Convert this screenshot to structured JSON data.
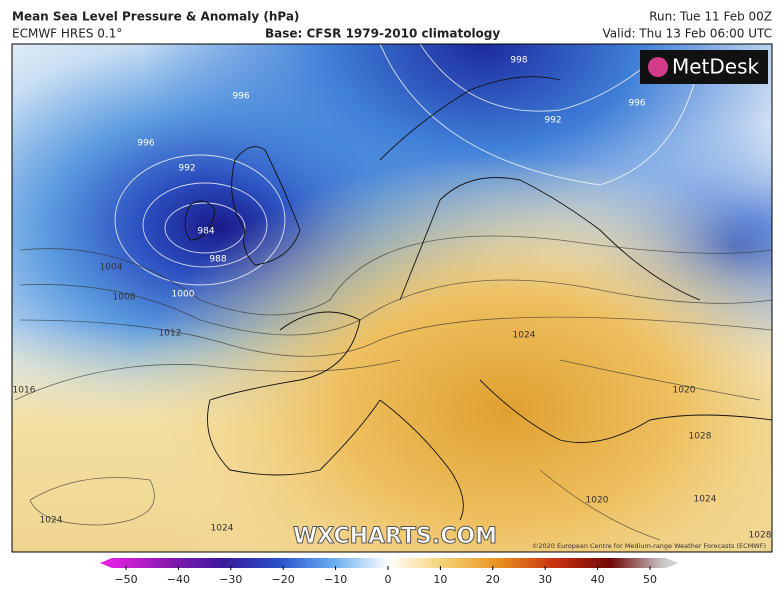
{
  "header": {
    "title": "Mean Sea Level Pressure & Anomaly (hPa)",
    "model": "ECMWF HRES 0.1°",
    "base": "Base: CFSR 1979-2010 climatology",
    "run": "Run: Tue 11 Feb 00Z",
    "valid": "Valid: Thu 13 Feb 06:00 UTC"
  },
  "map": {
    "logo": "MetDesk",
    "watermark": "WXCHARTS.COM",
    "copyright": "©2020 European Centre for Medium-range Weather Forecasts (ECMWF)",
    "isobar_labels": [
      996,
      998,
      992,
      996,
      996,
      992,
      984,
      988,
      1000,
      1004,
      1008,
      1012,
      1016,
      1024,
      1020,
      1028,
      1020,
      1024,
      1024,
      1024,
      1028
    ]
  },
  "colorbar": {
    "lim": [
      -50,
      50
    ],
    "ticks": [
      {
        "value": -50,
        "label": "−50"
      },
      {
        "value": -40,
        "label": "−40"
      },
      {
        "value": -30,
        "label": "−30"
      },
      {
        "value": -20,
        "label": "−20"
      },
      {
        "value": -10,
        "label": "−10"
      },
      0,
      10,
      20,
      30,
      40,
      50
    ]
  }
}
